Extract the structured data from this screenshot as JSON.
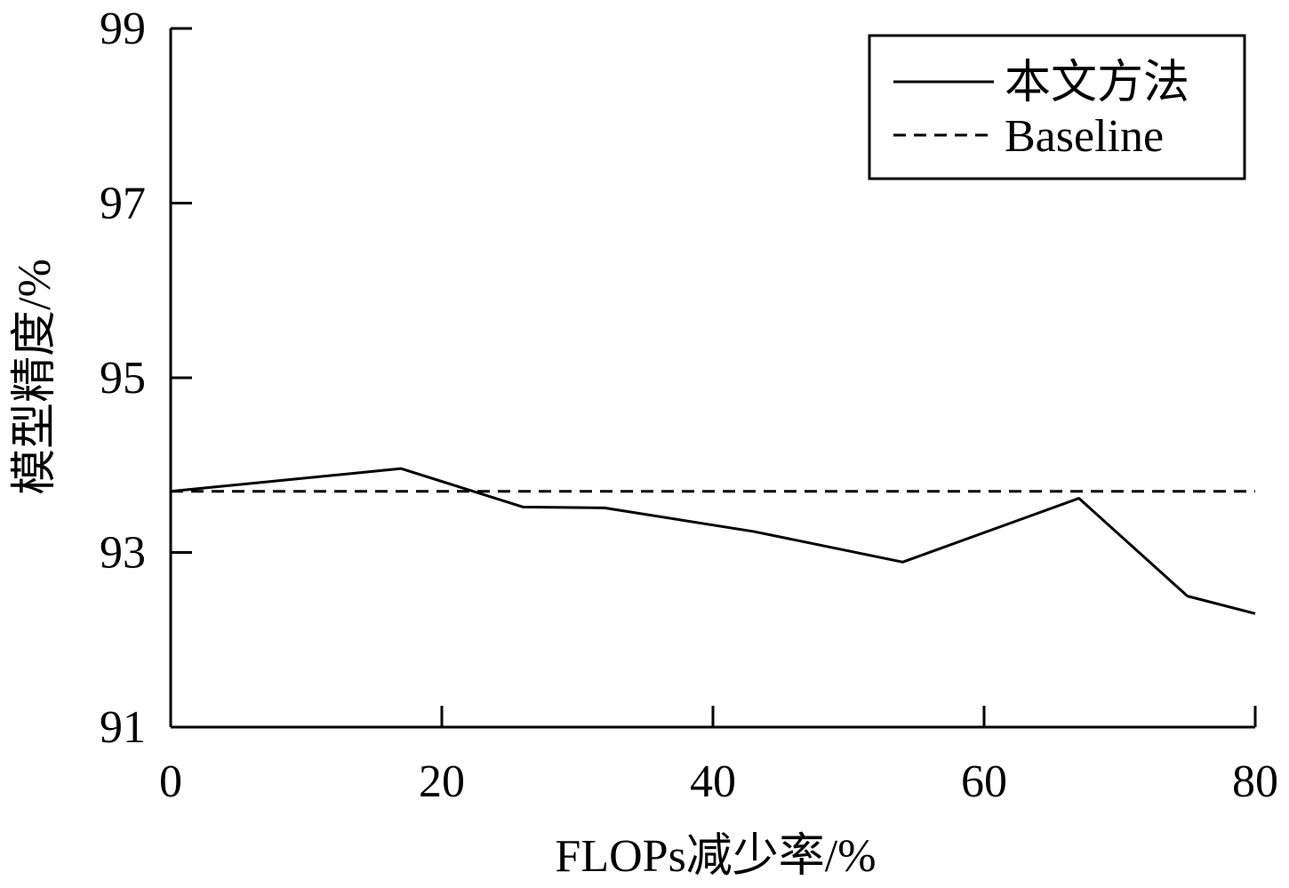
{
  "chart_data": {
    "type": "line",
    "xlabel": "FLOPs减少率/%",
    "ylabel": "模型精度/%",
    "xlim": [
      0,
      80
    ],
    "ylim": [
      91,
      99
    ],
    "xticks": [
      "0",
      "20",
      "40",
      "60",
      "80"
    ],
    "yticks": [
      "91",
      "93",
      "95",
      "97",
      "99"
    ],
    "grid": false,
    "legend_position": "top-right",
    "series": [
      {
        "name": "本文方法",
        "style": "solid",
        "color": "#000000",
        "x": [
          0,
          17,
          26,
          32,
          43,
          54,
          67,
          75,
          80
        ],
        "y": [
          93.7,
          93.96,
          93.52,
          93.51,
          93.24,
          92.89,
          93.62,
          92.5,
          92.3
        ]
      },
      {
        "name": "Baseline",
        "style": "dashed",
        "color": "#000000",
        "x": [
          0,
          80
        ],
        "y": [
          93.7,
          93.7
        ]
      }
    ]
  }
}
